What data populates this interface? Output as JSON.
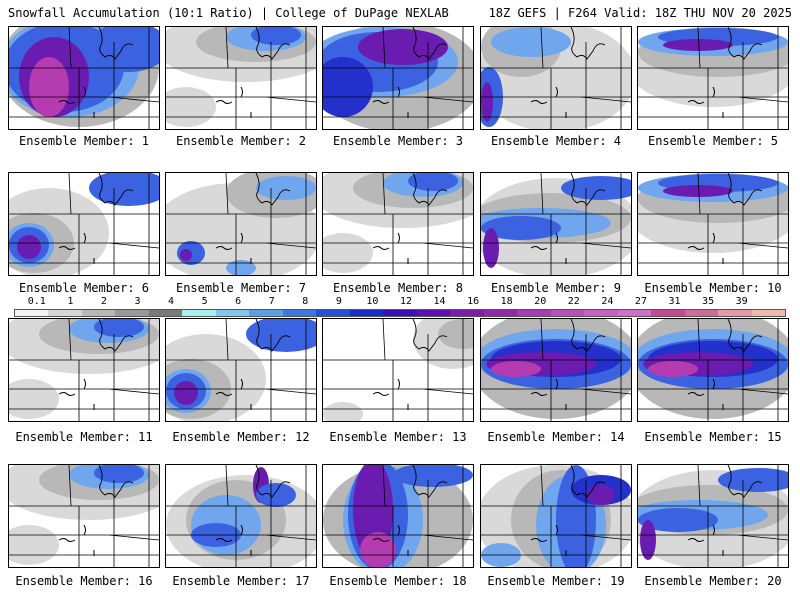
{
  "header": {
    "left_title": "Snowfall Accumulation (10:1 Ratio) | College of DuPage NEXLAB",
    "right_title": "18Z GEFS | F264 Valid: 18Z THU NOV 20 2025"
  },
  "members": [
    {
      "label": "Ensemble Member: 1",
      "pattern": "heavy-west"
    },
    {
      "label": "Ensemble Member: 2",
      "pattern": "north-light"
    },
    {
      "label": "Ensemble Member: 3",
      "pattern": "broad-north"
    },
    {
      "label": "Ensemble Member: 4",
      "pattern": "west-edge"
    },
    {
      "label": "Ensemble Member: 5",
      "pattern": "north-band"
    },
    {
      "label": "Ensemble Member: 6",
      "pattern": "southwest-blob"
    },
    {
      "label": "Ensemble Member: 7",
      "pattern": "scattered"
    },
    {
      "label": "Ensemble Member: 8",
      "pattern": "north-light"
    },
    {
      "label": "Ensemble Member: 9",
      "pattern": "central-band"
    },
    {
      "label": "Ensemble Member: 10",
      "pattern": "north-band"
    },
    {
      "label": "Ensemble Member: 11",
      "pattern": "north-light"
    },
    {
      "label": "Ensemble Member: 12",
      "pattern": "southwest-blob"
    },
    {
      "label": "Ensemble Member: 13",
      "pattern": "minimal"
    },
    {
      "label": "Ensemble Member: 14",
      "pattern": "heavy-band"
    },
    {
      "label": "Ensemble Member: 15",
      "pattern": "heavy-band"
    },
    {
      "label": "Ensemble Member: 16",
      "pattern": "north-light"
    },
    {
      "label": "Ensemble Member: 17",
      "pattern": "diagonal"
    },
    {
      "label": "Ensemble Member: 18",
      "pattern": "vertical-heavy"
    },
    {
      "label": "Ensemble Member: 19",
      "pattern": "vertical"
    },
    {
      "label": "Ensemble Member: 20",
      "pattern": "central-band"
    }
  ],
  "colorbar": {
    "labels": [
      "0.1",
      "1",
      "2",
      "3",
      "4",
      "5",
      "6",
      "7",
      "8",
      "9",
      "10",
      "12",
      "14",
      "16",
      "18",
      "20",
      "22",
      "24",
      "27",
      "31",
      "35",
      "39"
    ],
    "colors": [
      "#f2f2f2",
      "#d6d6d6",
      "#b8b8b8",
      "#999999",
      "#7a7a7a",
      "#a8f0f0",
      "#82c8ee",
      "#5aa0e6",
      "#3c78e0",
      "#2450d8",
      "#1a2cc8",
      "#3a10b8",
      "#5c10b0",
      "#7a1cae",
      "#9428aa",
      "#a83cb0",
      "#b850b8",
      "#c860c0",
      "#d070c8",
      "#c84890",
      "#d06a98",
      "#e09aa8",
      "#f0b8b0"
    ]
  }
}
